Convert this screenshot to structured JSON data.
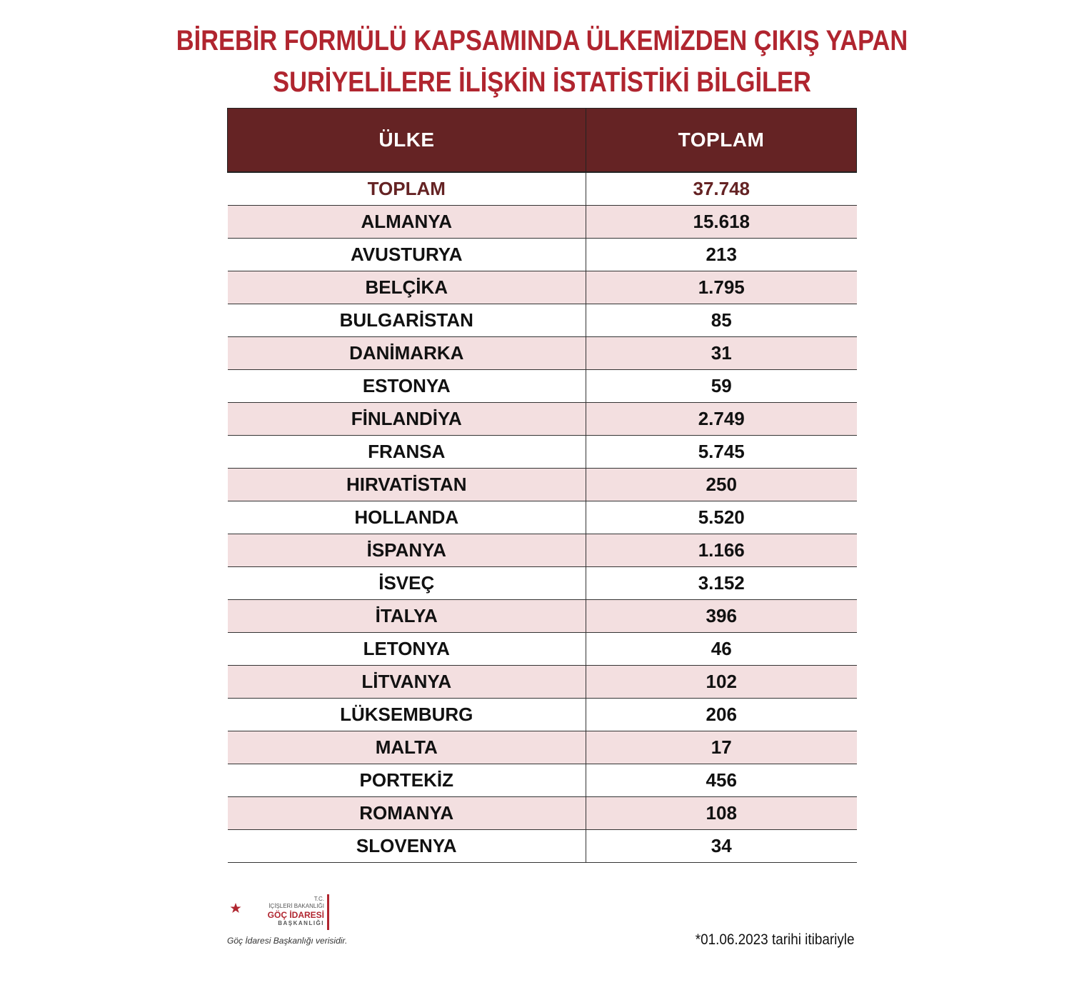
{
  "title": {
    "line1": "BİREBİR FORMÜLÜ KAPSAMINDA ÜLKEMİZDEN ÇIKIŞ YAPAN",
    "line2": "SURİYELİLERE İLİŞKİN İSTATİSTİKİ BİLGİLER"
  },
  "table": {
    "headers": [
      "ÜLKE",
      "TOPLAM"
    ],
    "rows": [
      {
        "country": "TOPLAM",
        "total": "37.748"
      },
      {
        "country": "ALMANYA",
        "total": "15.618"
      },
      {
        "country": "AVUSTURYA",
        "total": "213"
      },
      {
        "country": "BELÇİKA",
        "total": "1.795"
      },
      {
        "country": "BULGARİSTAN",
        "total": "85"
      },
      {
        "country": "DANİMARKA",
        "total": "31"
      },
      {
        "country": "ESTONYA",
        "total": "59"
      },
      {
        "country": "FİNLANDİYA",
        "total": "2.749"
      },
      {
        "country": "FRANSA",
        "total": "5.745"
      },
      {
        "country": "HIRVATİSTAN",
        "total": "250"
      },
      {
        "country": "HOLLANDA",
        "total": "5.520"
      },
      {
        "country": "İSPANYA",
        "total": "1.166"
      },
      {
        "country": "İSVEÇ",
        "total": "3.152"
      },
      {
        "country": "İTALYA",
        "total": "396"
      },
      {
        "country": "LETONYA",
        "total": "46"
      },
      {
        "country": "LİTVANYA",
        "total": "102"
      },
      {
        "country": "LÜKSEMBURG",
        "total": "206"
      },
      {
        "country": "MALTA",
        "total": "17"
      },
      {
        "country": "PORTEKİZ",
        "total": "456"
      },
      {
        "country": "ROMANYA",
        "total": "108"
      },
      {
        "country": "SLOVENYA",
        "total": "34"
      }
    ]
  },
  "logo": {
    "icon": "crescent-star-icon",
    "line1": "T.C.",
    "line2": "İÇİŞLERİ BAKANLIĞI",
    "line3": "GÖÇ İDARESİ",
    "line4": "BAŞKANLIĞI",
    "caption": "Göç İdaresi Başkanlığı verisidir.",
    "color": "#b0252f"
  },
  "footnote": "*01.06.2023 tarihi itibariyle",
  "colors": {
    "title": "#b0252f",
    "header_bg": "#652324",
    "alt_row_bg": "#f3dfe0"
  }
}
